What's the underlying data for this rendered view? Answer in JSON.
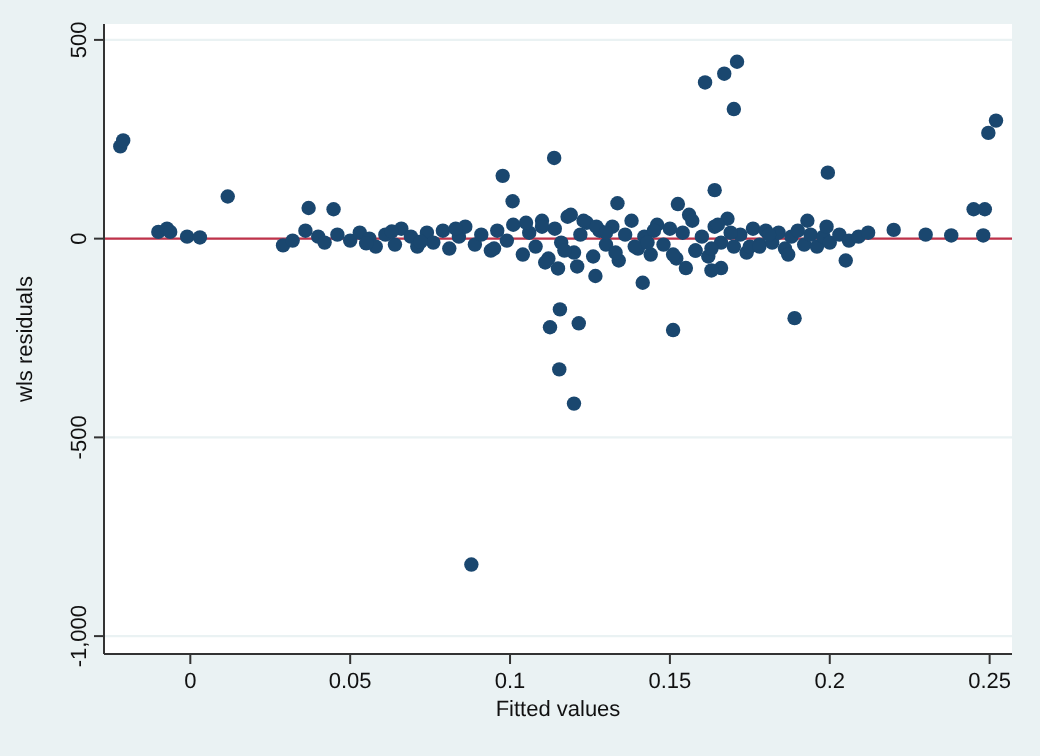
{
  "chart_data": {
    "type": "scatter",
    "xlabel": "Fitted values",
    "ylabel": "wls residuals",
    "xlim": [
      -0.027,
      0.257
    ],
    "ylim": [
      -1045,
      540
    ],
    "xticks": [
      0,
      0.05,
      0.1,
      0.15,
      0.2,
      0.25
    ],
    "yticks": [
      500,
      0,
      -500,
      {
        "value": -1000,
        "label": "-1,000"
      }
    ],
    "grid": "y",
    "marker": "circle",
    "ref_lines": [
      {
        "axis": "y",
        "value": 0,
        "color": "#c0324a"
      }
    ],
    "series": [
      {
        "color": "#1a476f",
        "x": [
          -0.0219,
          -0.021,
          0.0117,
          0.161,
          0.167,
          0.171,
          0.17,
          0.252,
          0.2496,
          0.1138,
          0.0977,
          0.1994,
          0.164,
          0.1008,
          0.1336,
          0.1525,
          0.037,
          0.0448,
          0.245,
          0.2485,
          0.22,
          0.23,
          0.238,
          0.248,
          -0.01,
          -0.0073,
          -0.0063,
          -0.001,
          0.003,
          0.029,
          0.1156,
          0.1125,
          0.1215,
          0.151,
          0.189,
          0.1415,
          0.166,
          0.163,
          0.155,
          0.1267,
          0.1154,
          0.12,
          0.0879,
          0.032,
          0.036,
          0.04,
          0.042,
          0.046,
          0.05,
          0.053,
          0.056,
          0.058,
          0.061,
          0.064,
          0.066,
          0.069,
          0.071,
          0.074,
          0.076,
          0.079,
          0.081,
          0.084,
          0.086,
          0.089,
          0.091,
          0.094,
          0.096,
          0.099,
          0.101,
          0.104,
          0.106,
          0.108,
          0.11,
          0.112,
          0.114,
          0.116,
          0.118,
          0.12,
          0.122,
          0.124,
          0.126,
          0.128,
          0.13,
          0.132,
          0.134,
          0.136,
          0.138,
          0.14,
          0.142,
          0.144,
          0.146,
          0.148,
          0.15,
          0.152,
          0.154,
          0.156,
          0.158,
          0.16,
          0.162,
          0.164,
          0.166,
          0.168,
          0.17,
          0.172,
          0.174,
          0.176,
          0.178,
          0.18,
          0.182,
          0.184,
          0.186,
          0.188,
          0.19,
          0.192,
          0.194,
          0.196,
          0.198,
          0.2,
          0.203,
          0.206,
          0.209,
          0.212,
          0.055,
          0.063,
          0.072,
          0.083,
          0.095,
          0.105,
          0.111,
          0.117,
          0.121,
          0.127,
          0.133,
          0.139,
          0.145,
          0.151,
          0.157,
          0.163,
          0.169,
          0.175,
          0.181,
          0.187,
          0.193,
          0.199,
          0.205,
          0.11,
          0.115,
          0.119,
          0.123,
          0.13,
          0.143,
          0.158,
          0.165,
          0.178
        ],
        "values": [
          232,
          247,
          106,
          393,
          415,
          445,
          326,
          297,
          266,
          203,
          158,
          166,
          122,
          94,
          89,
          87,
          77,
          74,
          74,
          74,
          22,
          10,
          8,
          8,
          17,
          25,
          17,
          5,
          3,
          -17,
          -178,
          -223,
          -213,
          -230,
          -200,
          -111,
          -74,
          -80,
          -74,
          -94,
          -329,
          -415,
          -820,
          -5,
          20,
          5,
          -10,
          10,
          -5,
          15,
          0,
          -20,
          10,
          -15,
          25,
          5,
          -20,
          15,
          -10,
          20,
          -25,
          5,
          30,
          -15,
          10,
          -30,
          20,
          -5,
          35,
          -40,
          15,
          -20,
          45,
          -50,
          25,
          -10,
          55,
          -35,
          10,
          40,
          -45,
          20,
          -15,
          30,
          -55,
          10,
          45,
          -25,
          5,
          -40,
          35,
          -15,
          25,
          -50,
          15,
          60,
          -30,
          5,
          -45,
          30,
          -10,
          50,
          -20,
          10,
          -35,
          25,
          -15,
          20,
          -10,
          15,
          -25,
          5,
          20,
          -15,
          10,
          -20,
          5,
          -10,
          10,
          -5,
          5,
          15,
          -12,
          18,
          -8,
          25,
          -25,
          40,
          -60,
          -30,
          -70,
          30,
          -35,
          -20,
          20,
          -40,
          45,
          -25,
          15,
          -20,
          10,
          -40,
          45,
          30,
          -55,
          30,
          -75,
          60,
          45,
          15,
          -10,
          -30,
          35,
          -20
        ]
      }
    ]
  }
}
